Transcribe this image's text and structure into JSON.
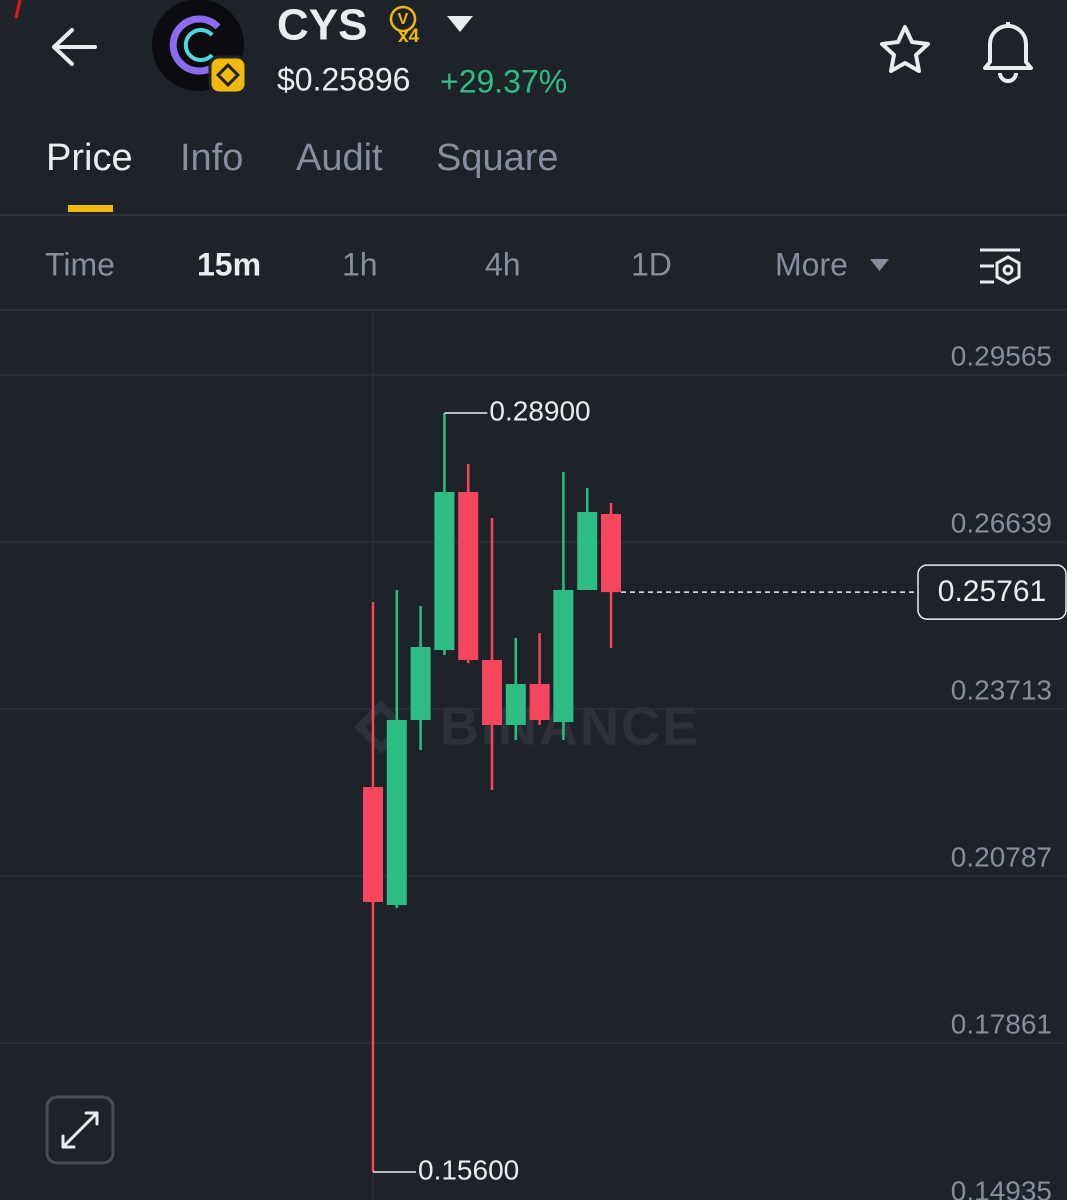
{
  "header": {
    "symbol": "CYS",
    "badge_letter": "V",
    "badge_multiplier": "x4",
    "price": "$0.25896",
    "change": "+29.37%"
  },
  "tabs": [
    "Price",
    "Info",
    "Audit",
    "Square"
  ],
  "intervals": [
    "Time",
    "15m",
    "1h",
    "4h",
    "1D",
    "More"
  ],
  "watermark": "BINANCE",
  "chart_data": {
    "type": "candlestick",
    "open": [
      0.22346,
      0.20279,
      0.2352,
      0.24747,
      0.27515,
      0.24571,
      0.23433,
      0.24151,
      0.23485,
      0.25798,
      0.2713
    ],
    "high": [
      0.25588,
      0.25798,
      0.25518,
      0.289,
      0.28006,
      0.27059,
      0.24957,
      0.25045,
      0.27865,
      0.27585,
      0.27322
    ],
    "low": [
      0.156,
      0.20226,
      0.22995,
      0.24659,
      0.24519,
      0.22294,
      0.2317,
      0.23433,
      0.2317,
      0.25798,
      0.24782
    ],
    "close": [
      0.20331,
      0.2352,
      0.24799,
      0.27515,
      0.24571,
      0.23433,
      0.24151,
      0.2352,
      0.25798,
      0.27165,
      0.25761
    ],
    "up_color": "#2ebd85",
    "down_color": "#f6465d",
    "ylim": [
      0.1511,
      0.30669
    ],
    "yticks": [
      0.29565,
      0.26639,
      0.23713,
      0.20787,
      0.17861,
      0.14935
    ],
    "grid": true,
    "last_price": 0.25761,
    "annotations": [
      {
        "value": 0.289,
        "label": "0.28900"
      },
      {
        "value": 0.156,
        "label": "0.15600"
      }
    ]
  }
}
